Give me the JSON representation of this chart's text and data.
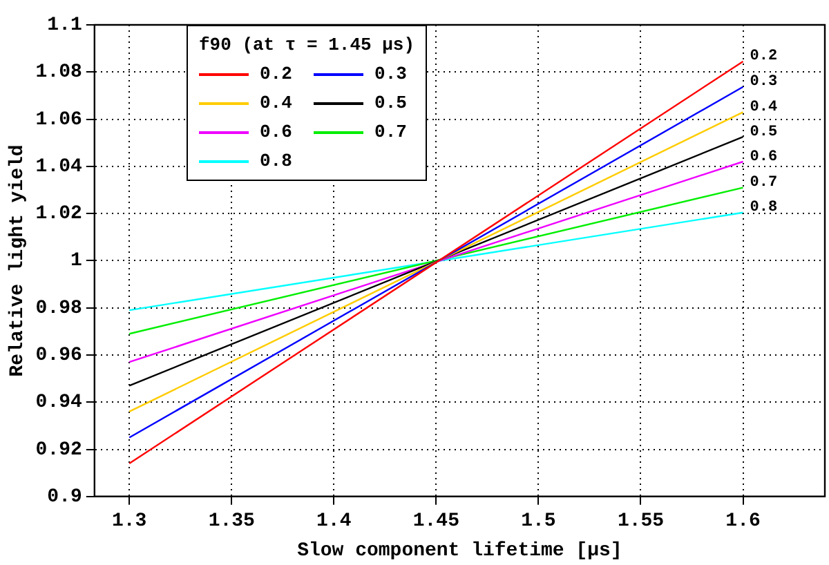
{
  "chart_data": {
    "type": "line",
    "xlabel": "Slow component lifetime [μs]",
    "ylabel": "Relative light yield",
    "legend_title": "f90 (at τ = 1.45 μs)",
    "x": [
      1.3,
      1.6
    ],
    "series": [
      {
        "name": "0.2",
        "color": "#ff0000",
        "values": [
          0.914,
          1.0845
        ]
      },
      {
        "name": "0.3",
        "color": "#0000ff",
        "values": [
          0.925,
          1.0737
        ]
      },
      {
        "name": "0.4",
        "color": "#ffcc00",
        "values": [
          0.936,
          1.063
        ]
      },
      {
        "name": "0.5",
        "color": "#000000",
        "values": [
          0.947,
          1.0525
        ]
      },
      {
        "name": "0.6",
        "color": "#ee00ff",
        "values": [
          0.957,
          1.042
        ]
      },
      {
        "name": "0.7",
        "color": "#00ee00",
        "values": [
          0.969,
          1.031
        ]
      },
      {
        "name": "0.8",
        "color": "#00ffff",
        "values": [
          0.979,
          1.0204
        ]
      }
    ],
    "xlim": [
      1.283,
      1.64
    ],
    "xticks": [
      1.3,
      1.35,
      1.4,
      1.45,
      1.5,
      1.55,
      1.6
    ],
    "ylim": [
      0.9,
      1.1
    ],
    "yticks": [
      0.9,
      0.92,
      0.94,
      0.96,
      0.98,
      1,
      1.02,
      1.04,
      1.06,
      1.08,
      1.1
    ],
    "grid": true,
    "legend": "top left",
    "marker": "none",
    "line_style": "solid"
  }
}
